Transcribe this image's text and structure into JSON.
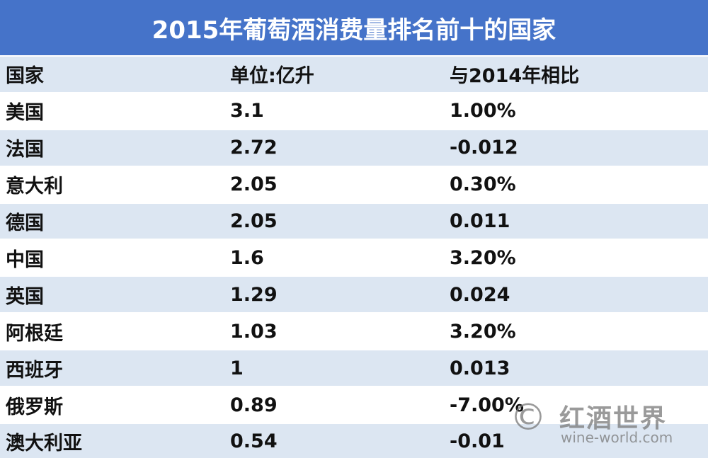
{
  "header": {
    "title": "2015年葡萄酒消费量排名前十的国家"
  },
  "table": {
    "columns": [
      "国家",
      "单位:亿升",
      "与2014年相比"
    ],
    "rows": [
      [
        "美国",
        "3.1",
        "1.00%"
      ],
      [
        "法国",
        "2.72",
        "-0.012"
      ],
      [
        "意大利",
        "2.05",
        "0.30%"
      ],
      [
        "德国",
        "2.05",
        "0.011"
      ],
      [
        "中国",
        "1.6",
        "3.20%"
      ],
      [
        "英国",
        "1.29",
        "0.024"
      ],
      [
        "阿根廷",
        "1.03",
        "3.20%"
      ],
      [
        "西班牙",
        "1",
        "0.013"
      ],
      [
        "俄罗斯",
        "0.89",
        "-7.00%"
      ],
      [
        "澳大利亚",
        "0.54",
        "-0.01"
      ]
    ]
  },
  "watermark": {
    "symbol": "©",
    "brand": "红酒世界",
    "site": "wine-world.com"
  }
}
